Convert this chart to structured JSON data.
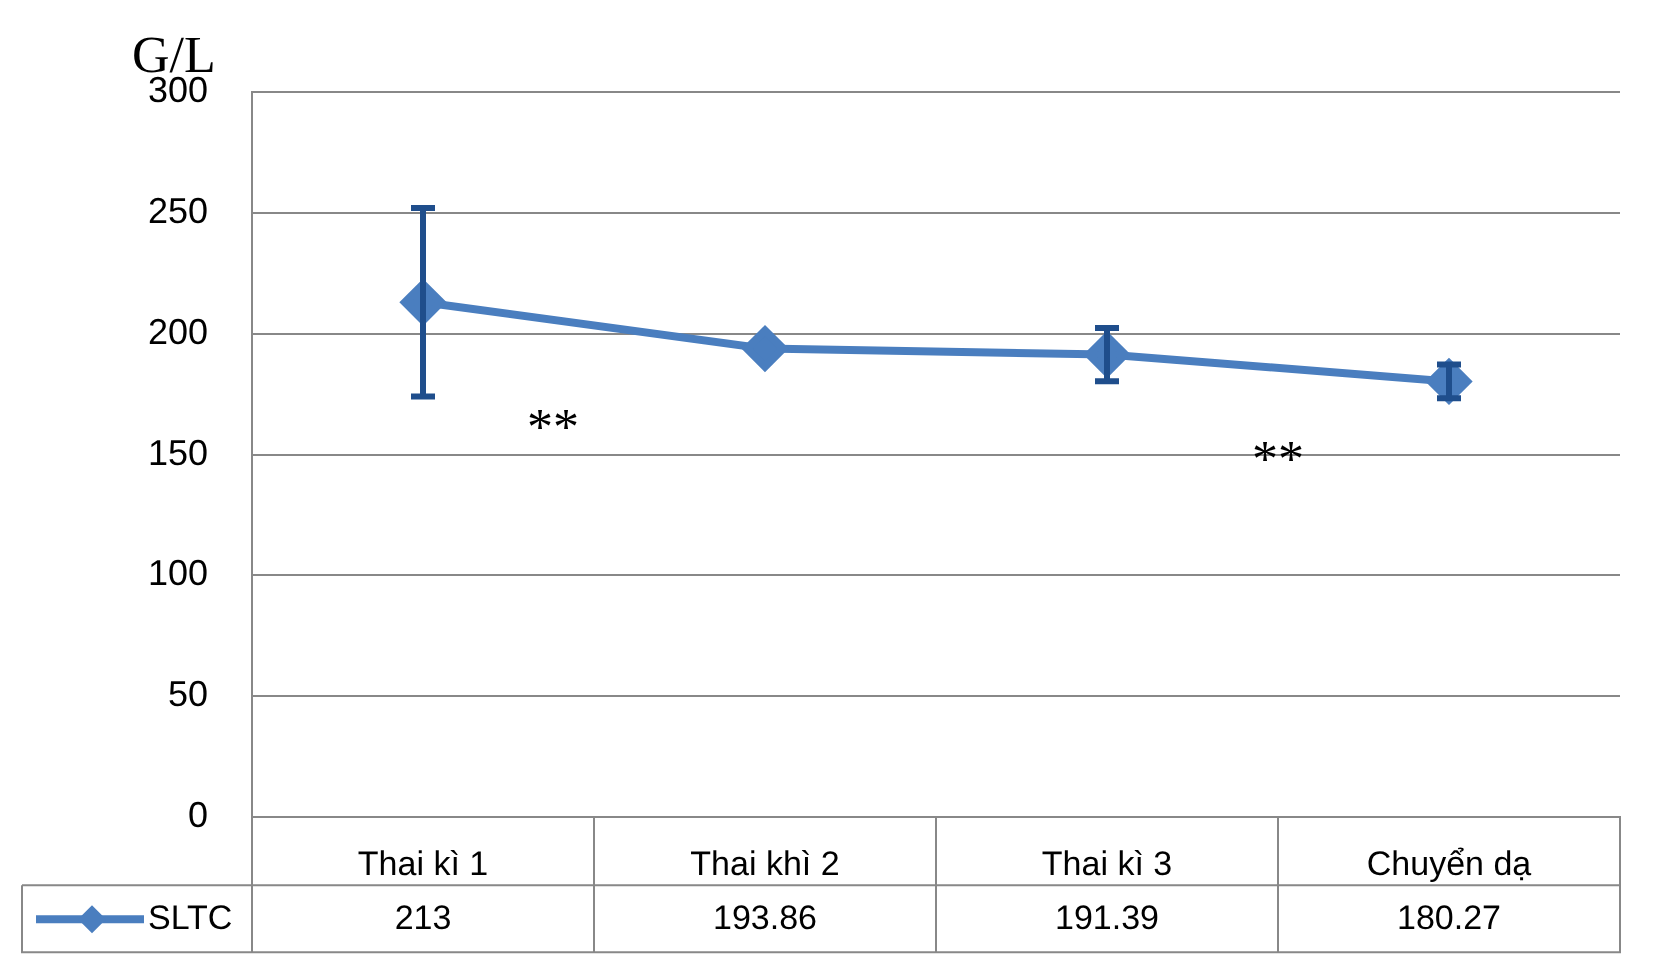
{
  "chart_data": {
    "type": "line",
    "ylabel": "G/L",
    "categories": [
      "Thai kì 1",
      "Thai khì 2",
      "Thai kì 3",
      "Chuyển dạ"
    ],
    "series": [
      {
        "name": "SLTC",
        "color": "#4a7ebf",
        "values": [
          213,
          193.86,
          191.39,
          180.27
        ],
        "errors": [
          39,
          null,
          11,
          7
        ]
      }
    ],
    "ylim": [
      0,
      300
    ],
    "yticks": [
      0,
      50,
      100,
      150,
      200,
      250,
      300
    ],
    "grid": "y",
    "marker": "diamond",
    "line_style": "solid",
    "data_labels": true,
    "legend": "bottom",
    "annotations": [
      "**",
      "**"
    ]
  }
}
